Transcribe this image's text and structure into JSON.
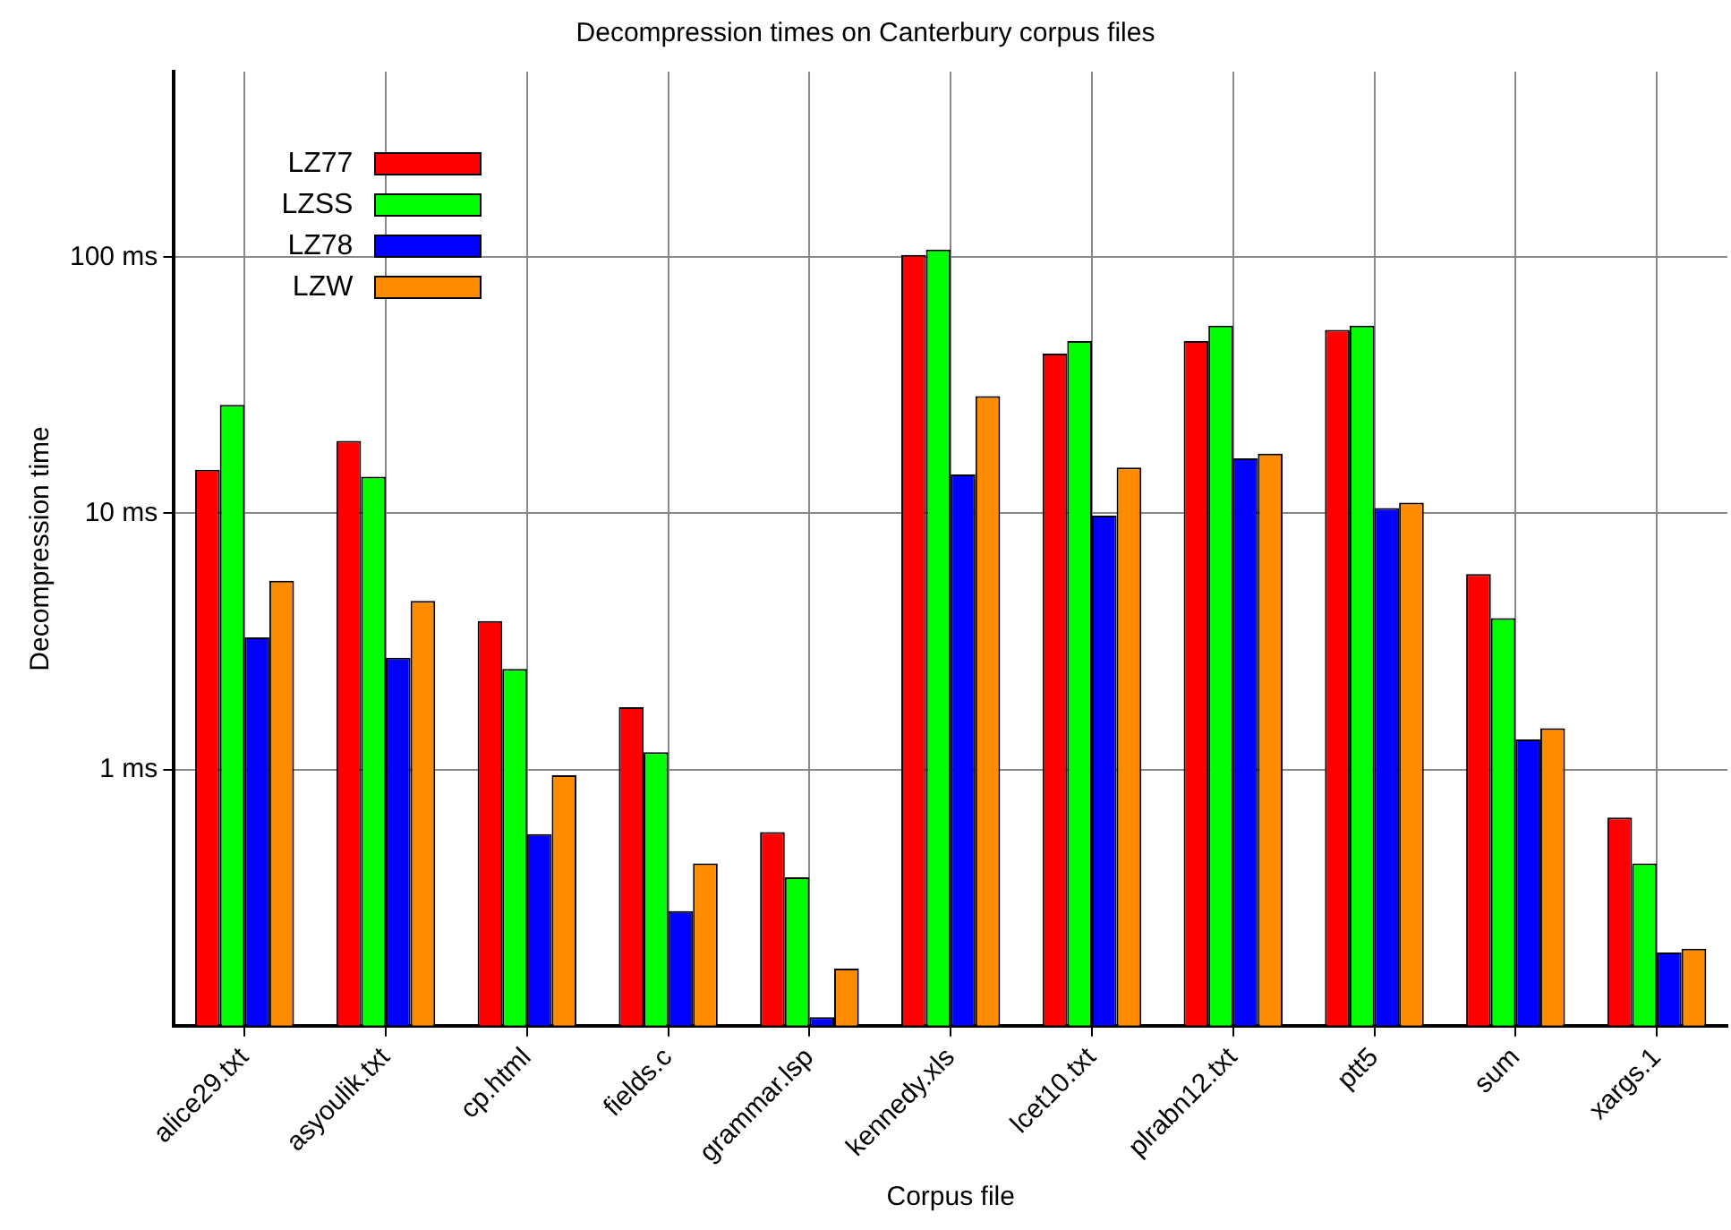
{
  "chart_data": {
    "type": "bar",
    "title": "Decompression times on Canterbury corpus files",
    "xlabel": "Corpus file",
    "ylabel": "Decompression time",
    "categories": [
      "alice29.txt",
      "asyoulik.txt",
      "cp.html",
      "fields.c",
      "grammar.lsp",
      "kennedy.xls",
      "lcet10.txt",
      "plrabn12.txt",
      "ptt5",
      "sum",
      "xargs.1"
    ],
    "series": [
      {
        "name": "LZ77",
        "color": "#ff0000",
        "values": [
          14.8,
          19.2,
          3.8,
          1.75,
          0.57,
          102,
          42,
          47,
          52,
          5.8,
          0.65
        ]
      },
      {
        "name": "LZSS",
        "color": "#00ff00",
        "values": [
          26.5,
          13.9,
          2.47,
          1.17,
          0.38,
          107,
          47,
          54,
          54,
          3.9,
          0.43
        ]
      },
      {
        "name": "LZ78",
        "color": "#0000ff",
        "values": [
          3.28,
          2.73,
          0.56,
          0.28,
          0.108,
          14.2,
          9.8,
          16.4,
          10.5,
          1.31,
          0.193
        ]
      },
      {
        "name": "LZW",
        "color": "#ff8c00",
        "values": [
          5.46,
          4.55,
          0.95,
          0.43,
          0.167,
          28.7,
          15.1,
          17.1,
          11,
          1.45,
          0.2
        ]
      }
    ],
    "log": true,
    "ylim": [
      0.1,
      530
    ],
    "yticks": [
      {
        "value": 1,
        "label": "1 ms"
      },
      {
        "value": 10,
        "label": "10 ms"
      },
      {
        "value": 100,
        "label": "100 ms"
      }
    ],
    "grid": true,
    "legend": "top left"
  }
}
